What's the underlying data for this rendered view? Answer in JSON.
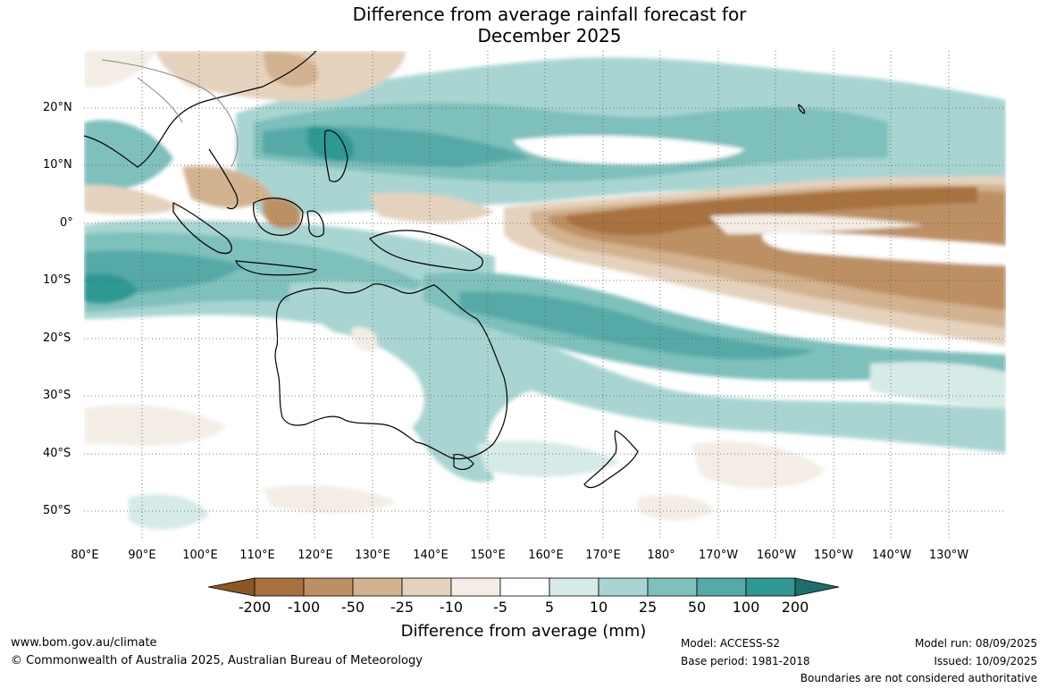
{
  "title_line1": "Difference from average rainfall forecast for",
  "title_line2": "December 2025",
  "lat_labels": [
    "20°N",
    "10°N",
    "0°",
    "10°S",
    "20°S",
    "30°S",
    "40°S",
    "50°S"
  ],
  "lon_labels": [
    "80°E",
    "90°E",
    "100°E",
    "110°E",
    "120°E",
    "130°E",
    "140°E",
    "150°E",
    "160°E",
    "170°E",
    "180°",
    "170°W",
    "160°W",
    "150°W",
    "140°W",
    "130°W"
  ],
  "colorbar": {
    "label": "Difference from average (mm)",
    "ticks": [
      "-200",
      "-100",
      "-50",
      "-25",
      "-10",
      "-5",
      "5",
      "10",
      "25",
      "50",
      "100",
      "200"
    ],
    "colors": {
      "extend_low": "#8c5626",
      "brown_200_100": "#a7713f",
      "brown_100_50": "#bd9064",
      "brown_50_25": "#d2b28f",
      "brown_25_10": "#e5d2bd",
      "brown_10_5": "#f3ede5",
      "neutral": "#ffffff",
      "teal_5_10": "#d6eae8",
      "teal_10_25": "#a8d5d2",
      "teal_25_50": "#7ec0bc",
      "teal_50_100": "#55aaa7",
      "teal_100_200": "#2f9893",
      "extend_high": "#1e6e6b"
    }
  },
  "footer": {
    "website": "www.bom.gov.au/climate",
    "copyright": "© Commonwealth of Australia 2025, Australian Bureau of Meteorology",
    "model": "Model: ACCESS-S2",
    "base_period": "Base period: 1981-2018",
    "model_run": "Model run: 08/09/2025",
    "issued": "Issued: 10/09/2025",
    "disclaimer": "Boundaries are not considered authoritative"
  }
}
